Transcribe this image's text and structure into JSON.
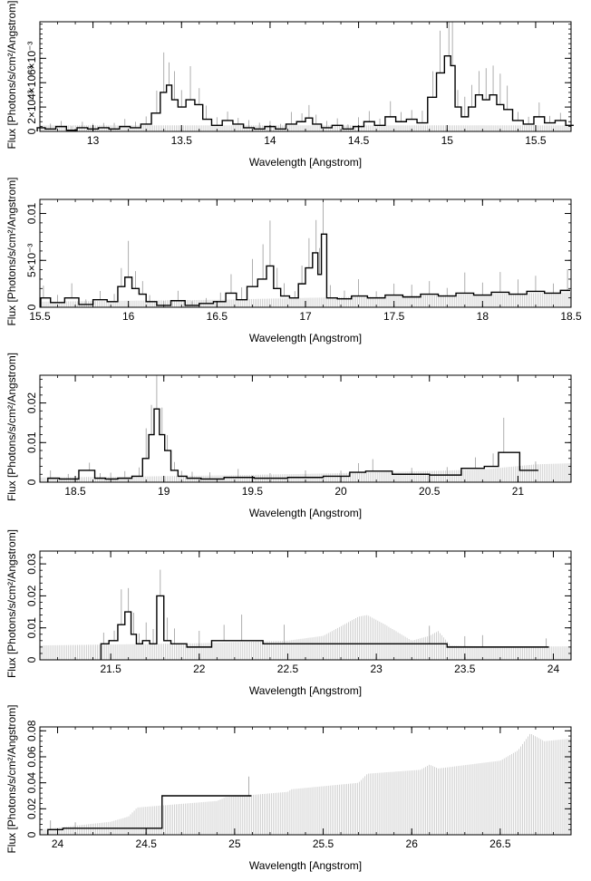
{
  "chart_data": [
    {
      "type": "line",
      "xlabel": "Wavelength [Angstrom]",
      "ylabel": "Flux [Photons/s/cm²/Angstrom]",
      "xlim": [
        12.7,
        15.7
      ],
      "ylim": [
        0,
        0.009
      ],
      "xticks": [
        {
          "v": 13,
          "t": "13"
        },
        {
          "v": 13.5,
          "t": "13.5"
        },
        {
          "v": 14,
          "t": "14"
        },
        {
          "v": 14.5,
          "t": "14.5"
        },
        {
          "v": 15,
          "t": "15"
        },
        {
          "v": 15.5,
          "t": "15.5"
        }
      ],
      "yticks": [
        {
          "v": 0,
          "t": "0"
        },
        {
          "v": 0.002,
          "t": "2×10⁻³"
        },
        {
          "v": 0.004,
          "t": "4×10⁻³"
        },
        {
          "v": 0.006,
          "t": "6×10⁻³"
        }
      ],
      "model_points": [
        [
          12.7,
          0.0005
        ],
        [
          15.7,
          0.0005
        ]
      ],
      "data_points": [
        [
          12.7,
          0.0003
        ],
        [
          12.76,
          0.0002
        ],
        [
          12.82,
          0.0004
        ],
        [
          12.88,
          0.0001
        ],
        [
          12.94,
          0.0003
        ],
        [
          13.0,
          0.0002
        ],
        [
          13.06,
          0.0003
        ],
        [
          13.12,
          0.0002
        ],
        [
          13.18,
          0.0004
        ],
        [
          13.24,
          0.0003
        ],
        [
          13.3,
          0.0006
        ],
        [
          13.36,
          0.0015
        ],
        [
          13.4,
          0.0032
        ],
        [
          13.43,
          0.0038
        ],
        [
          13.46,
          0.0026
        ],
        [
          13.5,
          0.002
        ],
        [
          13.55,
          0.0026
        ],
        [
          13.6,
          0.0022
        ],
        [
          13.64,
          0.001
        ],
        [
          13.7,
          0.0005
        ],
        [
          13.76,
          0.0009
        ],
        [
          13.82,
          0.0006
        ],
        [
          13.88,
          0.0003
        ],
        [
          13.94,
          0.0002
        ],
        [
          14.0,
          0.0004
        ],
        [
          14.06,
          0.0002
        ],
        [
          14.12,
          0.0006
        ],
        [
          14.18,
          0.0008
        ],
        [
          14.22,
          0.0011
        ],
        [
          14.26,
          0.0006
        ],
        [
          14.32,
          0.0003
        ],
        [
          14.38,
          0.0005
        ],
        [
          14.44,
          0.0002
        ],
        [
          14.5,
          0.0004
        ],
        [
          14.56,
          0.0008
        ],
        [
          14.62,
          0.0005
        ],
        [
          14.68,
          0.0012
        ],
        [
          14.74,
          0.0008
        ],
        [
          14.8,
          0.001
        ],
        [
          14.86,
          0.0007
        ],
        [
          14.92,
          0.0028
        ],
        [
          14.96,
          0.0048
        ],
        [
          15.01,
          0.0062
        ],
        [
          15.03,
          0.0054
        ],
        [
          15.06,
          0.002
        ],
        [
          15.1,
          0.0012
        ],
        [
          15.14,
          0.002
        ],
        [
          15.18,
          0.003
        ],
        [
          15.22,
          0.0026
        ],
        [
          15.26,
          0.003
        ],
        [
          15.3,
          0.0022
        ],
        [
          15.34,
          0.0018
        ],
        [
          15.4,
          0.0009
        ],
        [
          15.46,
          0.0006
        ],
        [
          15.52,
          0.0012
        ],
        [
          15.58,
          0.0007
        ],
        [
          15.64,
          0.0009
        ],
        [
          15.7,
          0.0005
        ]
      ]
    },
    {
      "type": "line",
      "xlabel": "Wavelength [Angstrom]",
      "ylabel": "Flux [Photons/s/cm²/Angstrom]",
      "xlim": [
        15.5,
        18.5
      ],
      "ylim": [
        0,
        0.0115
      ],
      "xticks": [
        {
          "v": 15.5,
          "t": "15.5"
        },
        {
          "v": 16,
          "t": "16"
        },
        {
          "v": 16.5,
          "t": "16.5"
        },
        {
          "v": 17,
          "t": "17"
        },
        {
          "v": 17.5,
          "t": "17.5"
        },
        {
          "v": 18,
          "t": "18"
        },
        {
          "v": 18.5,
          "t": "18.5"
        }
      ],
      "yticks": [
        {
          "v": 0,
          "t": "0"
        },
        {
          "v": 0.005,
          "t": "5×10⁻³"
        },
        {
          "v": 0.01,
          "t": "0.01"
        }
      ],
      "model_points": [
        [
          15.5,
          0.0006
        ],
        [
          16.0,
          0.0007
        ],
        [
          16.5,
          0.0008
        ],
        [
          17.0,
          0.001
        ],
        [
          17.5,
          0.0012
        ],
        [
          18.0,
          0.0014
        ],
        [
          18.5,
          0.0016
        ]
      ],
      "data_points": [
        [
          15.52,
          0.001
        ],
        [
          15.6,
          0.0005
        ],
        [
          15.68,
          0.001
        ],
        [
          15.76,
          0.0003
        ],
        [
          15.84,
          0.0008
        ],
        [
          15.92,
          0.0006
        ],
        [
          15.96,
          0.0022
        ],
        [
          16.0,
          0.0032
        ],
        [
          16.04,
          0.002
        ],
        [
          16.08,
          0.0014
        ],
        [
          16.12,
          0.0006
        ],
        [
          16.2,
          0.0002
        ],
        [
          16.28,
          0.0007
        ],
        [
          16.36,
          0.0002
        ],
        [
          16.44,
          0.0004
        ],
        [
          16.52,
          0.0006
        ],
        [
          16.58,
          0.0015
        ],
        [
          16.64,
          0.0008
        ],
        [
          16.7,
          0.0022
        ],
        [
          16.76,
          0.003
        ],
        [
          16.8,
          0.0044
        ],
        [
          16.84,
          0.002
        ],
        [
          16.88,
          0.0012
        ],
        [
          16.94,
          0.001
        ],
        [
          16.98,
          0.0025
        ],
        [
          17.02,
          0.0042
        ],
        [
          17.06,
          0.0058
        ],
        [
          17.08,
          0.0035
        ],
        [
          17.1,
          0.0078
        ],
        [
          17.14,
          0.001
        ],
        [
          17.22,
          0.0009
        ],
        [
          17.3,
          0.0012
        ],
        [
          17.4,
          0.001
        ],
        [
          17.5,
          0.0013
        ],
        [
          17.6,
          0.0011
        ],
        [
          17.7,
          0.0014
        ],
        [
          17.8,
          0.0012
        ],
        [
          17.9,
          0.0015
        ],
        [
          18.0,
          0.0013
        ],
        [
          18.1,
          0.0016
        ],
        [
          18.2,
          0.0014
        ],
        [
          18.3,
          0.0017
        ],
        [
          18.4,
          0.0015
        ],
        [
          18.48,
          0.0018
        ]
      ]
    },
    {
      "type": "line",
      "xlabel": "Wavelength [Angstrom]",
      "ylabel": "Flux [Photons/s/cm²/Angstrom]",
      "xlim": [
        18.3,
        21.3
      ],
      "ylim": [
        0,
        0.027
      ],
      "xticks": [
        {
          "v": 18.5,
          "t": "18.5"
        },
        {
          "v": 19,
          "t": "19"
        },
        {
          "v": 19.5,
          "t": "19.5"
        },
        {
          "v": 20,
          "t": "20"
        },
        {
          "v": 20.5,
          "t": "20.5"
        },
        {
          "v": 21,
          "t": "21"
        }
      ],
      "yticks": [
        {
          "v": 0,
          "t": "0"
        },
        {
          "v": 0.01,
          "t": "0.01"
        },
        {
          "v": 0.02,
          "t": "0.02"
        }
      ],
      "model_points": [
        [
          18.3,
          0.0012
        ],
        [
          18.8,
          0.0014
        ],
        [
          19.3,
          0.0017
        ],
        [
          19.8,
          0.0021
        ],
        [
          20.3,
          0.0026
        ],
        [
          20.8,
          0.0032
        ],
        [
          21.1,
          0.0045
        ],
        [
          21.3,
          0.0048
        ]
      ],
      "data_points": [
        [
          18.36,
          0.001
        ],
        [
          18.46,
          0.0008
        ],
        [
          18.58,
          0.003
        ],
        [
          18.64,
          0.001
        ],
        [
          18.7,
          0.0008
        ],
        [
          18.78,
          0.001
        ],
        [
          18.86,
          0.0015
        ],
        [
          18.9,
          0.006
        ],
        [
          18.93,
          0.012
        ],
        [
          18.96,
          0.0185
        ],
        [
          18.99,
          0.012
        ],
        [
          19.02,
          0.008
        ],
        [
          19.06,
          0.003
        ],
        [
          19.1,
          0.0015
        ],
        [
          19.16,
          0.001
        ],
        [
          19.26,
          0.0008
        ],
        [
          19.42,
          0.0012
        ],
        [
          19.6,
          0.001
        ],
        [
          19.8,
          0.0012
        ],
        [
          20.0,
          0.0015
        ],
        [
          20.1,
          0.0025
        ],
        [
          20.18,
          0.0028
        ],
        [
          20.4,
          0.002
        ],
        [
          20.6,
          0.0018
        ],
        [
          20.76,
          0.0035
        ],
        [
          20.86,
          0.004
        ],
        [
          20.92,
          0.0075
        ],
        [
          21.1,
          0.003
        ]
      ]
    },
    {
      "type": "line",
      "xlabel": "Wavelength [Angstrom]",
      "ylabel": "Flux [Photons/s/cm²/Angstrom]",
      "xlim": [
        21.1,
        24.1
      ],
      "ylim": [
        0,
        0.034
      ],
      "xticks": [
        {
          "v": 21.5,
          "t": "21.5"
        },
        {
          "v": 22,
          "t": "22"
        },
        {
          "v": 22.5,
          "t": "22.5"
        },
        {
          "v": 23,
          "t": "23"
        },
        {
          "v": 23.5,
          "t": "23.5"
        },
        {
          "v": 24,
          "t": "24"
        }
      ],
      "yticks": [
        {
          "v": 0,
          "t": "0"
        },
        {
          "v": 0.01,
          "t": "0.01"
        },
        {
          "v": 0.02,
          "t": "0.02"
        },
        {
          "v": 0.03,
          "t": "0.03"
        }
      ],
      "model_points": [
        [
          21.1,
          0.0045
        ],
        [
          21.5,
          0.0048
        ],
        [
          22.0,
          0.0052
        ],
        [
          22.5,
          0.006
        ],
        [
          22.7,
          0.0075
        ],
        [
          22.9,
          0.0135
        ],
        [
          22.95,
          0.014
        ],
        [
          23.05,
          0.011
        ],
        [
          23.2,
          0.006
        ],
        [
          23.3,
          0.0075
        ],
        [
          23.35,
          0.009
        ],
        [
          23.42,
          0.0045
        ],
        [
          23.6,
          0.0042
        ],
        [
          24.1,
          0.0042
        ]
      ],
      "data_points": [
        [
          21.46,
          0.005
        ],
        [
          21.52,
          0.006
        ],
        [
          21.56,
          0.011
        ],
        [
          21.6,
          0.015
        ],
        [
          21.63,
          0.008
        ],
        [
          21.66,
          0.005
        ],
        [
          21.7,
          0.006
        ],
        [
          21.74,
          0.005
        ],
        [
          21.78,
          0.02
        ],
        [
          21.82,
          0.006
        ],
        [
          21.86,
          0.005
        ],
        [
          22.0,
          0.004
        ],
        [
          22.14,
          0.006
        ],
        [
          22.24,
          0.006
        ],
        [
          22.48,
          0.005
        ],
        [
          23.3,
          0.005
        ],
        [
          23.5,
          0.004
        ],
        [
          23.6,
          0.004
        ],
        [
          23.96,
          0.004
        ]
      ]
    },
    {
      "type": "line",
      "xlabel": "Wavelength [Angstrom]",
      "ylabel": "Flux [Photons/s/cm²/Angstrom]",
      "xlim": [
        23.9,
        26.9
      ],
      "ylim": [
        0,
        0.083
      ],
      "xticks": [
        {
          "v": 24,
          "t": "24"
        },
        {
          "v": 24.5,
          "t": "24.5"
        },
        {
          "v": 25,
          "t": "25"
        },
        {
          "v": 25.5,
          "t": "25.5"
        },
        {
          "v": 26,
          "t": "26"
        },
        {
          "v": 26.5,
          "t": "26.5"
        }
      ],
      "yticks": [
        {
          "v": 0,
          "t": "0"
        },
        {
          "v": 0.02,
          "t": "0.02"
        },
        {
          "v": 0.04,
          "t": "0.04"
        },
        {
          "v": 0.06,
          "t": "0.06"
        },
        {
          "v": 0.08,
          "t": "0.08"
        }
      ],
      "model_points": [
        [
          23.9,
          0.004
        ],
        [
          24.3,
          0.01
        ],
        [
          24.4,
          0.014
        ],
        [
          24.45,
          0.021
        ],
        [
          24.9,
          0.026
        ],
        [
          24.95,
          0.029
        ],
        [
          25.3,
          0.033
        ],
        [
          25.32,
          0.035
        ],
        [
          25.7,
          0.04
        ],
        [
          25.75,
          0.047
        ],
        [
          26.05,
          0.05
        ],
        [
          26.1,
          0.054
        ],
        [
          26.15,
          0.051
        ],
        [
          26.5,
          0.057
        ],
        [
          26.6,
          0.065
        ],
        [
          26.67,
          0.078
        ],
        [
          26.75,
          0.072
        ],
        [
          26.9,
          0.074
        ]
      ],
      "data_points": [
        [
          23.96,
          0.004
        ],
        [
          24.1,
          0.005
        ],
        [
          25.08,
          0.03
        ]
      ]
    }
  ]
}
